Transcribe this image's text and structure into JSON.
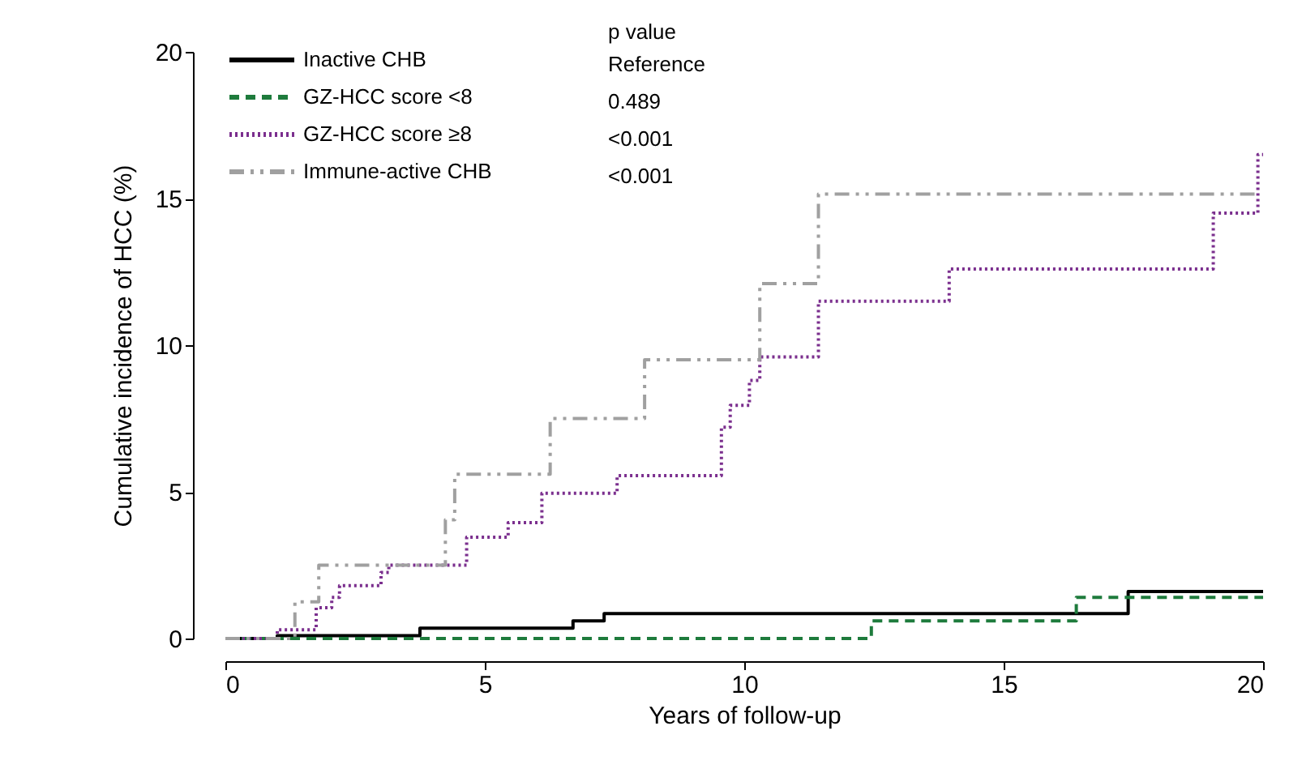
{
  "chart_data": {
    "type": "step",
    "xlabel": "Years of follow-up",
    "ylabel": "Cumulative incidence of HCC (%)",
    "legend_title": "p value",
    "xlim": [
      0,
      20
    ],
    "ylim": [
      0,
      20
    ],
    "xticks": [
      0,
      5,
      10,
      15,
      20
    ],
    "yticks": [
      0,
      5,
      10,
      15,
      20
    ],
    "grid": false,
    "legend": "top left",
    "series": [
      {
        "name": "Inactive CHB",
        "color": "#000000",
        "line_style": "solid",
        "x": [
          0,
          1.0,
          3.75,
          6.7,
          7.3,
          17.4,
          20
        ],
        "values": [
          0,
          0.1,
          0.35,
          0.6,
          0.85,
          1.6,
          1.6
        ]
      },
      {
        "name": "GZ-HCC score <8",
        "color": "#1e7b3c",
        "line_style": "dashed",
        "x": [
          0,
          12.45,
          16.4,
          20
        ],
        "values": [
          0,
          0.6,
          1.4,
          1.4
        ]
      },
      {
        "name": "GZ-HCC score ≥8",
        "color": "#7b2f8e",
        "line_style": "dotted",
        "x": [
          0,
          1.0,
          1.75,
          2.05,
          2.2,
          3.0,
          3.15,
          4.65,
          5.45,
          6.1,
          7.55,
          9.56,
          9.73,
          10.1,
          10.3,
          11.43,
          13.95,
          19.04,
          19.9,
          20
        ],
        "values": [
          0,
          0.3,
          1.05,
          1.4,
          1.8,
          2.25,
          2.5,
          3.45,
          3.95,
          4.95,
          5.55,
          7.2,
          7.95,
          8.8,
          9.6,
          11.5,
          12.6,
          14.5,
          16.5,
          16.5
        ]
      },
      {
        "name": "Immune-active CHB",
        "color": "#a0a0a0",
        "line_style": "dashdot",
        "x": [
          0,
          1.34,
          1.8,
          4.24,
          4.42,
          6.26,
          8.08,
          10.3,
          11.43,
          19.9
        ],
        "values": [
          0,
          1.25,
          2.5,
          4.05,
          5.6,
          7.5,
          9.5,
          12.1,
          15.15,
          15.15
        ]
      }
    ],
    "annotations": [
      "Reference",
      "0.489",
      "<0.001",
      "<0.001"
    ]
  }
}
